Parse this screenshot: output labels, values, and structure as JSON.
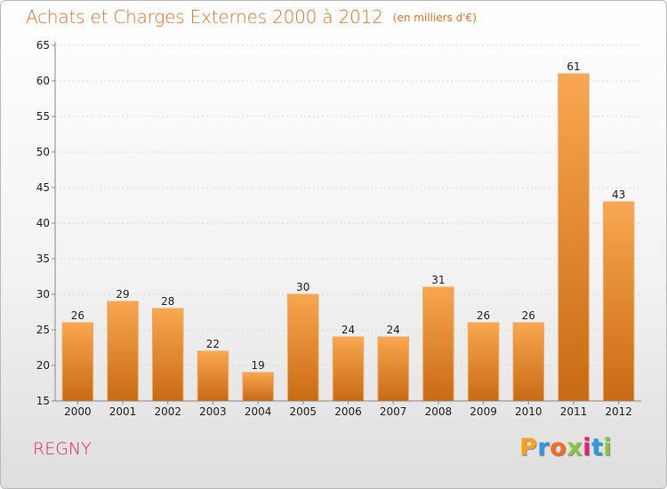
{
  "header": {
    "title": "Achats et Charges Externes 2000 à 2012",
    "unit": "(en milliers d'€)"
  },
  "footer": {
    "place": "REGNY"
  },
  "logo": {
    "letters": [
      "P",
      "r",
      "o",
      "x",
      "i",
      "t",
      "i"
    ],
    "colors": [
      "#f7a11c",
      "#2a9be0",
      "#f36c21",
      "#8cc63f",
      "#ed1c72",
      "#2a9be0",
      "#8cc63f"
    ]
  },
  "colors": {
    "bar_top": "#f8a750",
    "bar_bottom": "#c96a14",
    "axis": "#888888",
    "grid": "#d8d8d8",
    "tick_text": "#222222",
    "title": "#ef6f1f",
    "place": "#ef1f5f"
  },
  "chart_data": {
    "type": "bar",
    "title": "Achats et Charges Externes 2000 à 2012",
    "subtitle": "(en milliers d'€)",
    "xlabel": "",
    "ylabel": "",
    "categories": [
      "2000",
      "2001",
      "2002",
      "2003",
      "2004",
      "2005",
      "2006",
      "2007",
      "2008",
      "2009",
      "2010",
      "2011",
      "2012"
    ],
    "values": [
      26,
      29,
      28,
      22,
      19,
      30,
      24,
      24,
      31,
      26,
      26,
      61,
      43
    ],
    "ylim": [
      15,
      65
    ],
    "yticks": [
      15,
      20,
      25,
      30,
      35,
      40,
      45,
      50,
      55,
      60,
      65
    ],
    "grid": true,
    "legend": "none"
  }
}
